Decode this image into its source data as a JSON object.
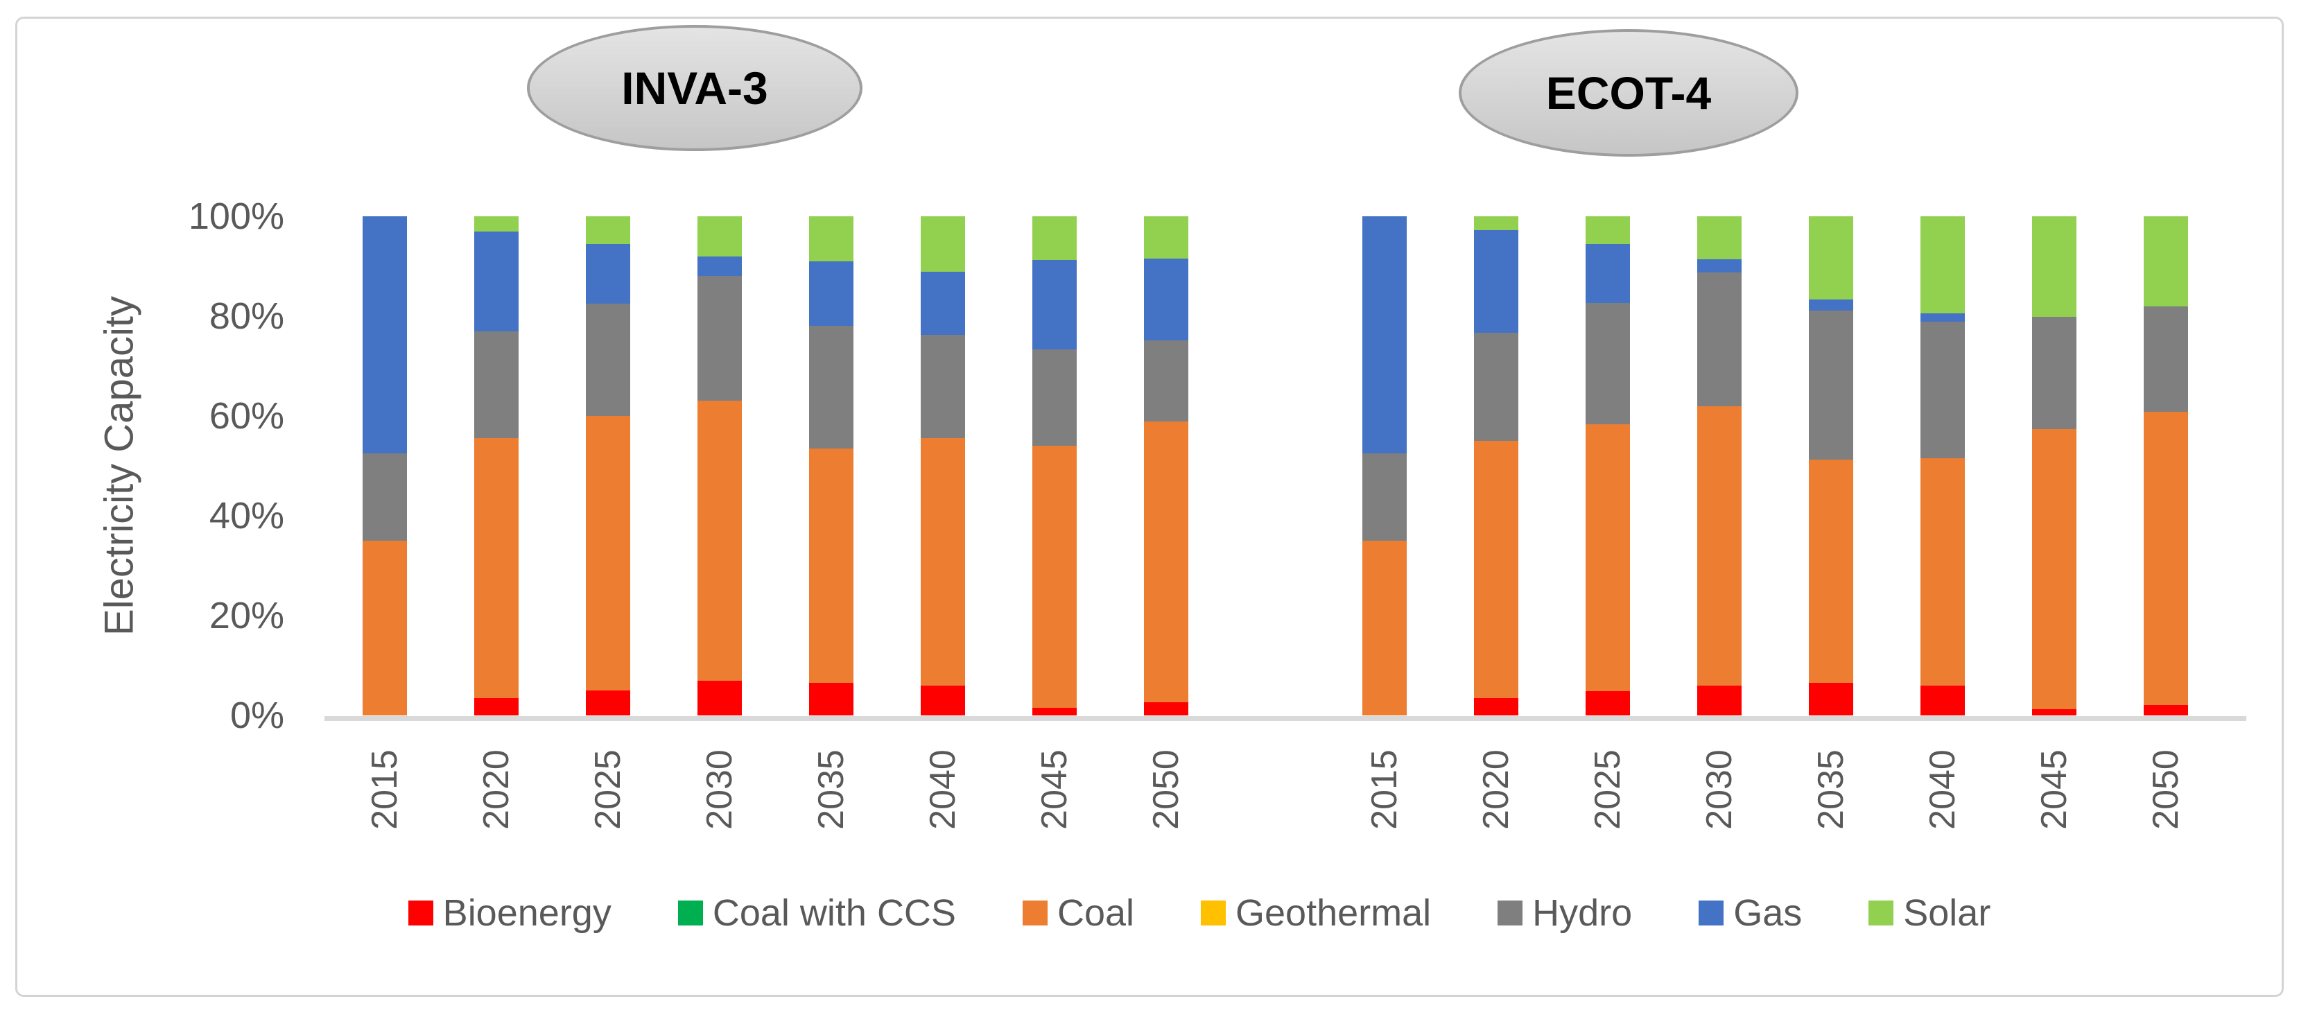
{
  "figure": {
    "panels": [
      {
        "title": "INVA-3"
      },
      {
        "title": "ECOT-4"
      }
    ],
    "y_axis": {
      "title": "Electricity Capacity",
      "tick_labels": [
        "100%",
        "80%",
        "60%",
        "40%",
        "20%",
        "0%"
      ],
      "tick_values": [
        100,
        80,
        60,
        40,
        20,
        0
      ]
    },
    "x_tick_labels": [
      "2015",
      "2020",
      "2025",
      "2030",
      "2035",
      "2040",
      "2045",
      "2050"
    ]
  },
  "legend": {
    "items": [
      {
        "label": "Bioenergy",
        "color": "#FF0000"
      },
      {
        "label": "Coal with CCS",
        "color": "#00B050"
      },
      {
        "label": "Coal",
        "color": "#ED7D31"
      },
      {
        "label": "Geothermal",
        "color": "#FFC000"
      },
      {
        "label": "Hydro",
        "color": "#7F7F7F"
      },
      {
        "label": "Gas",
        "color": "#4472C4"
      },
      {
        "label": "Solar",
        "color": "#92D050"
      }
    ]
  },
  "colors": {
    "axis_text": "#595959",
    "axis_line": "#D9D9D9",
    "figure_border": "#D4D4D4",
    "ellipse_border": "#9E9E9E",
    "ellipse_text": "#000000"
  },
  "chart_data": [
    {
      "type": "bar",
      "stacked": true,
      "title": "INVA-3",
      "ylabel": "Electricity Capacity",
      "unit": "%",
      "ylim": [
        0,
        100
      ],
      "gridlines": false,
      "legend_position": "bottom",
      "categories": [
        "2015",
        "2020",
        "2025",
        "2030",
        "2035",
        "2040",
        "2045",
        "2050"
      ],
      "series": [
        {
          "name": "Bioenergy",
          "color": "#FF0000",
          "values": [
            0,
            3.5,
            5,
            7,
            6.5,
            6,
            1.5,
            2.7
          ]
        },
        {
          "name": "Coal with CCS",
          "color": "#00B050",
          "values": [
            0,
            0,
            0,
            0,
            0,
            0,
            0,
            0
          ]
        },
        {
          "name": "Coal",
          "color": "#ED7D31",
          "values": [
            35,
            52,
            55,
            56,
            47,
            49.5,
            52.5,
            56.2
          ]
        },
        {
          "name": "Geothermal",
          "color": "#FFC000",
          "values": [
            0,
            0,
            0,
            0,
            0,
            0,
            0,
            0
          ]
        },
        {
          "name": "Hydro",
          "color": "#7F7F7F",
          "values": [
            17.5,
            21.5,
            22.5,
            25,
            24.5,
            20.7,
            19.3,
            16.2
          ]
        },
        {
          "name": "Gas",
          "color": "#4472C4",
          "values": [
            47.5,
            20,
            12,
            4,
            13,
            12.7,
            18,
            16.4
          ]
        },
        {
          "name": "Solar",
          "color": "#92D050",
          "values": [
            0,
            3,
            5.5,
            8,
            9,
            11.1,
            8.7,
            8.5
          ]
        }
      ]
    },
    {
      "type": "bar",
      "stacked": true,
      "title": "ECOT-4",
      "ylabel": "Electricity Capacity",
      "unit": "%",
      "ylim": [
        0,
        100
      ],
      "gridlines": false,
      "legend_position": "bottom",
      "categories": [
        "2015",
        "2020",
        "2025",
        "2030",
        "2035",
        "2040",
        "2045",
        "2050"
      ],
      "series": [
        {
          "name": "Bioenergy",
          "color": "#FF0000",
          "values": [
            0,
            3.5,
            4.9,
            6,
            6.5,
            6,
            1.3,
            2.1
          ]
        },
        {
          "name": "Coal with CCS",
          "color": "#00B050",
          "values": [
            0,
            0,
            0,
            0,
            0,
            0,
            0,
            0
          ]
        },
        {
          "name": "Coal",
          "color": "#ED7D31",
          "values": [
            35,
            51.5,
            53.4,
            56,
            44.7,
            45.5,
            56,
            58.8
          ]
        },
        {
          "name": "Geothermal",
          "color": "#FFC000",
          "values": [
            0,
            0,
            0,
            0,
            0,
            0,
            0,
            0
          ]
        },
        {
          "name": "Hydro",
          "color": "#7F7F7F",
          "values": [
            17.5,
            21.7,
            24.4,
            26.8,
            29.9,
            27.4,
            22.6,
            21.1
          ]
        },
        {
          "name": "Gas",
          "color": "#4472C4",
          "values": [
            47.5,
            20.5,
            11.8,
            2.6,
            2.3,
            1.7,
            0,
            0
          ]
        },
        {
          "name": "Solar",
          "color": "#92D050",
          "values": [
            0,
            2.8,
            5.5,
            8.6,
            16.6,
            19.4,
            20.1,
            18
          ]
        }
      ]
    }
  ]
}
